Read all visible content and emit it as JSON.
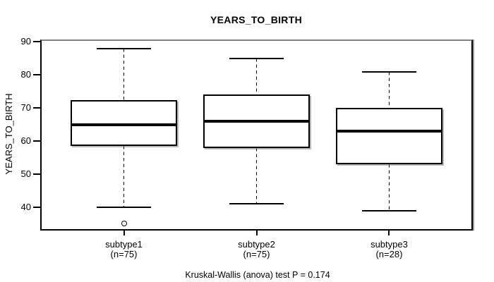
{
  "chart_data": {
    "type": "boxplot",
    "title": "YEARS_TO_BIRTH",
    "ylabel": "YEARS_TO_BIRTH",
    "xlabel": "",
    "annotation": "Kruskal-Wallis (anova) test P = 0.174",
    "ylim": [
      33.4,
      90.3
    ],
    "xlim": [
      0.38,
      3.62
    ],
    "yticks": [
      40,
      50,
      60,
      70,
      80,
      90
    ],
    "grid": "off",
    "legend": "none",
    "groups": [
      {
        "label": "subtype1",
        "sublabel": "(n=75)",
        "n": 75,
        "whisker_low": 40,
        "q1": 58.5,
        "median": 65,
        "q3": 72.5,
        "whisker_high": 88,
        "outliers": [
          35
        ]
      },
      {
        "label": "subtype2",
        "sublabel": "(n=75)",
        "n": 75,
        "whisker_low": 41,
        "q1": 58,
        "median": 66,
        "q3": 74,
        "whisker_high": 85,
        "outliers": []
      },
      {
        "label": "subtype3",
        "sublabel": "(n=28)",
        "n": 28,
        "whisker_low": 39,
        "q1": 53,
        "median": 63,
        "q3": 70,
        "whisker_high": 81,
        "outliers": []
      }
    ],
    "colors": {
      "box_fill": "#ffffff",
      "box_border": "#000000",
      "median": "#000000",
      "frame_border": "#000000",
      "frame_shadow": "#848484",
      "text": "#000000",
      "background": "#ffffff"
    }
  }
}
